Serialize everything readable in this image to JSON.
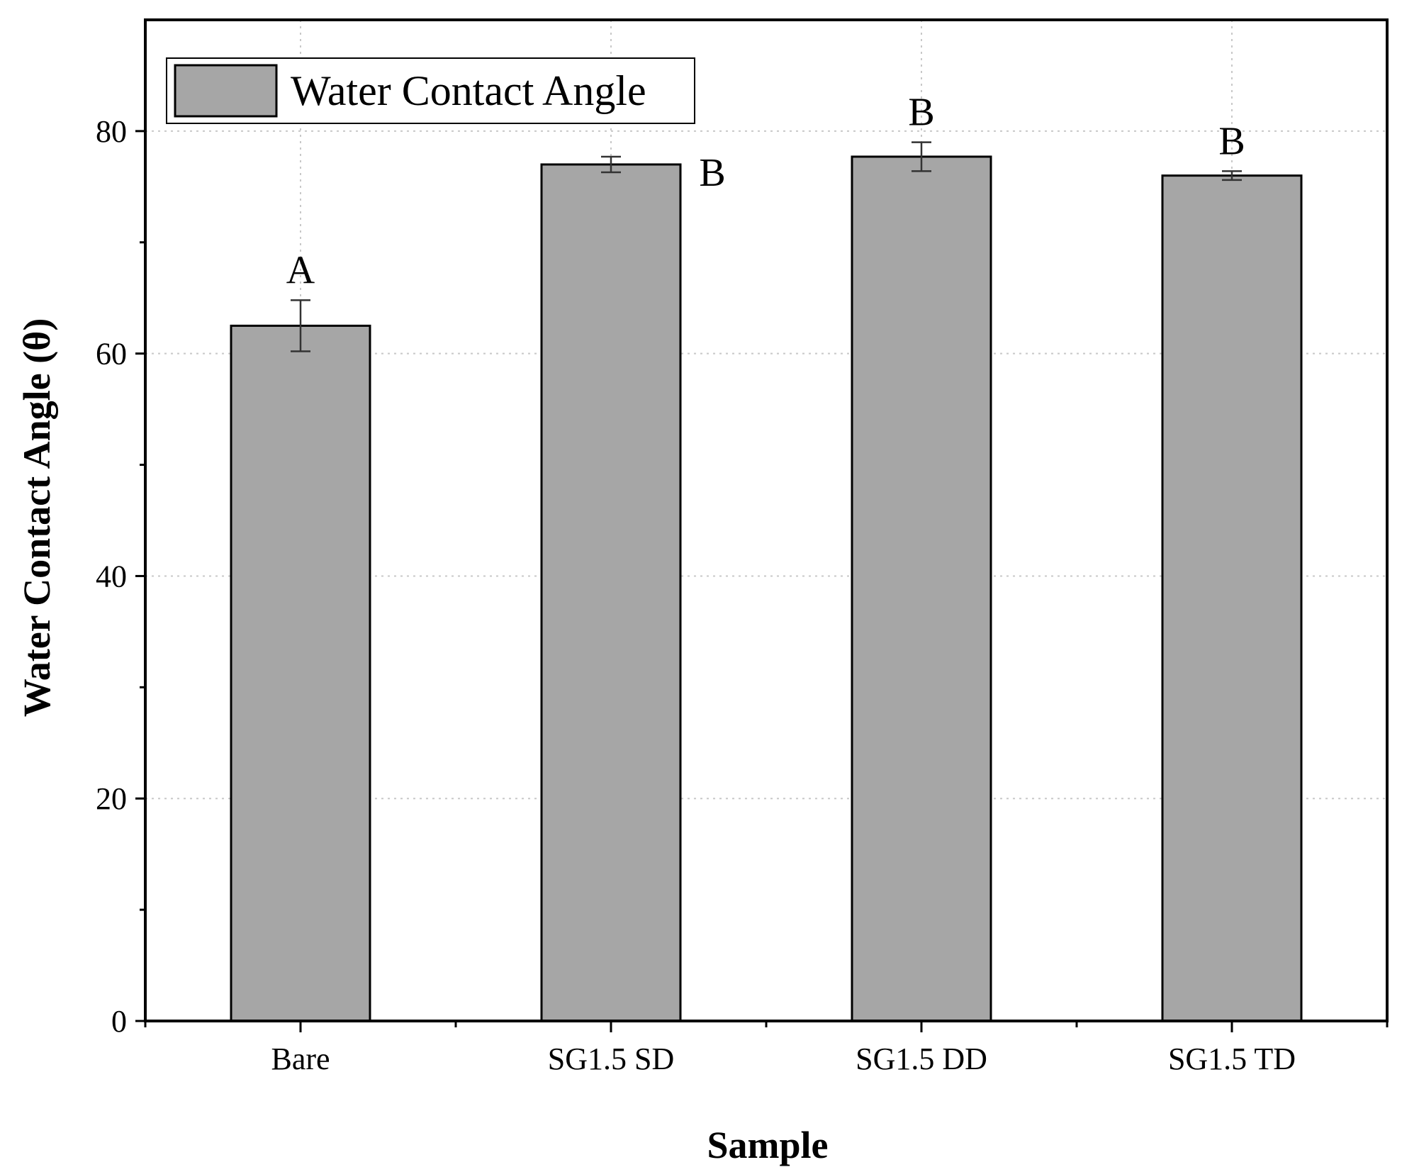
{
  "chart_data": {
    "type": "bar",
    "title": "",
    "xlabel": "Sample",
    "ylabel": "Water Contact Angle (θ)",
    "categories": [
      "Bare",
      "SG1.5 SD",
      "SG1.5 DD",
      "SG1.5 TD"
    ],
    "series": [
      {
        "name": "Water Contact Angle",
        "values": [
          62.5,
          77.0,
          77.7,
          76.0
        ],
        "errors": [
          2.3,
          0.7,
          1.3,
          0.4
        ],
        "color": "#a6a6a6"
      }
    ],
    "group_letters": [
      "A",
      "B",
      "B",
      "B"
    ],
    "ylim": [
      0,
      90
    ],
    "yticks": [
      0,
      20,
      40,
      60,
      80
    ],
    "ytick_labels": [
      "0",
      "20",
      "40",
      "60",
      "80"
    ],
    "grid": true,
    "legend": {
      "position": "top-left",
      "entries": [
        "Water Contact Angle"
      ]
    }
  }
}
